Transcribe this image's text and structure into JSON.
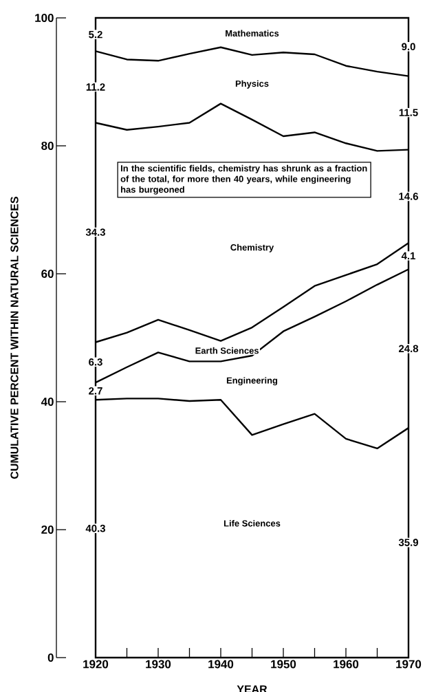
{
  "chart_data": {
    "type": "line",
    "xlabel": "YEAR",
    "ylabel": "CUMULATIVE PERCENT WITHIN NATURAL SCIENCES",
    "x": [
      1920,
      1925,
      1930,
      1935,
      1940,
      1945,
      1950,
      1955,
      1960,
      1965,
      1970
    ],
    "xlim": [
      1920,
      1970
    ],
    "ylim": [
      0,
      100
    ],
    "xticks": [
      1920,
      {
        "value": 1925,
        "label": null
      },
      1930,
      {
        "value": 1935,
        "label": null
      },
      1940,
      {
        "value": 1945,
        "label": null
      },
      1950,
      {
        "value": 1955,
        "label": null
      },
      1960,
      {
        "value": 1965,
        "label": null
      },
      1970
    ],
    "yticks": [
      0,
      20,
      40,
      60,
      80,
      100
    ],
    "series": [
      {
        "color": "#000000",
        "values": [
          40.3,
          40.5,
          40.5,
          40.1,
          40.3,
          34.8,
          36.5,
          38.1,
          34.2,
          32.7,
          35.9
        ]
      },
      {
        "color": "#000000",
        "values": [
          43.0,
          45.4,
          47.7,
          46.3,
          46.3,
          47.2,
          51.0,
          53.3,
          55.7,
          58.3,
          60.7
        ]
      },
      {
        "color": "#000000",
        "values": [
          49.3,
          50.8,
          52.8,
          51.2,
          49.5,
          51.6,
          54.8,
          58.1,
          59.8,
          61.5,
          64.8
        ]
      },
      {
        "color": "#000000",
        "values": [
          83.6,
          82.5,
          83.0,
          83.6,
          86.6,
          84.1,
          81.5,
          82.1,
          80.4,
          79.2,
          79.4
        ]
      },
      {
        "color": "#000000",
        "values": [
          94.8,
          93.5,
          93.3,
          94.4,
          95.4,
          94.2,
          94.6,
          94.3,
          92.5,
          91.6,
          90.9
        ]
      }
    ],
    "annotations": [
      "Mathematics",
      "Physics",
      "Chemistry",
      "Earth Sciences",
      "Engineering",
      "Life Sciences",
      "5.2",
      "11.2",
      "34.3",
      "6.3",
      "2.7",
      "40.3",
      "9.0",
      "11.5",
      "14.6",
      "4.1",
      "24.8",
      "35.9",
      "In the scientific fields, chemistry has shrunk as a fraction of the total, for more then 40 years, while engineering has burgeoned"
    ]
  }
}
